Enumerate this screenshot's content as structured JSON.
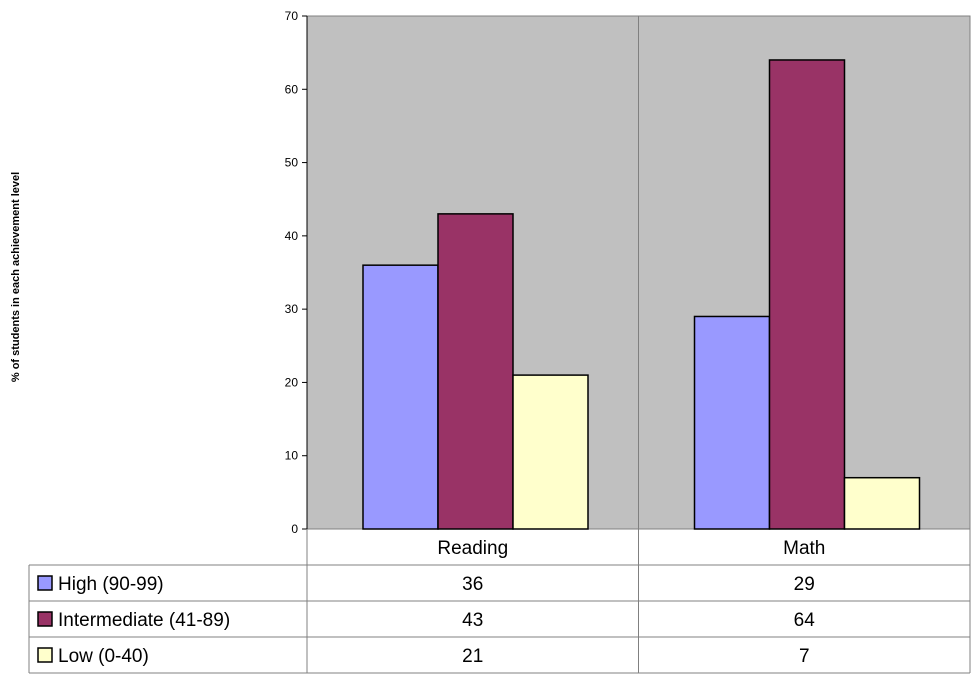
{
  "chart_data": {
    "type": "bar",
    "title": "",
    "xlabel": "",
    "ylabel": "% of students in each achievement level",
    "ylim": [
      0,
      70
    ],
    "yticks": [
      0,
      10,
      20,
      30,
      40,
      50,
      60,
      70
    ],
    "grid": false,
    "legend": "data-table",
    "categories": [
      "Reading",
      "Math"
    ],
    "series": [
      {
        "name": "High (90-99)",
        "values": [
          36,
          29
        ],
        "color": "#9999ff"
      },
      {
        "name": "Intermediate (41-89)",
        "values": [
          43,
          64
        ],
        "color": "#993366"
      },
      {
        "name": "Low (0-40)",
        "values": [
          21,
          7
        ],
        "color": "#ffffcc"
      }
    ],
    "plot_background": "#c0c0c0"
  }
}
